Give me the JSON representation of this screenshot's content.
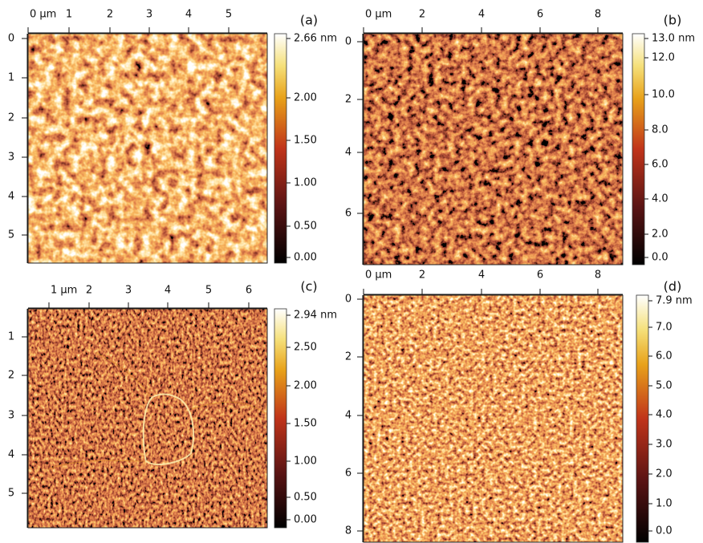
{
  "panels": [
    {
      "label": "(a)",
      "x_ticks": [
        "0 µm",
        "1",
        "2",
        "3",
        "4",
        "5"
      ],
      "y_ticks": [
        "0",
        "1",
        "2",
        "3",
        "4",
        "5"
      ],
      "scale_ticks": [
        "2.66 nm",
        "2.00",
        "1.50",
        "1.00",
        "0.50",
        "0.00"
      ]
    },
    {
      "label": "(b)",
      "x_ticks": [
        "0 µm",
        "2",
        "4",
        "6",
        "8"
      ],
      "y_ticks": [
        "0",
        "2",
        "4",
        "6"
      ],
      "scale_ticks": [
        "13.0 nm",
        "12.0",
        "10.0",
        "8.0",
        "6.0",
        "4.0",
        "2.0",
        "0.0"
      ]
    },
    {
      "label": "(c)",
      "x_ticks": [
        "1 µm",
        "2",
        "3",
        "4",
        "5",
        "6"
      ],
      "y_ticks": [
        "1",
        "2",
        "3",
        "4",
        "5"
      ],
      "scale_ticks": [
        "2.94 nm",
        "2.50",
        "2.00",
        "1.50",
        "1.00",
        "0.50",
        "0.00"
      ]
    },
    {
      "label": "(d)",
      "x_ticks": [
        "0 µm",
        "2",
        "4",
        "6",
        "8"
      ],
      "y_ticks": [
        "0",
        "2",
        "4",
        "6",
        "8"
      ],
      "scale_ticks": [
        "7.9 nm",
        "7.0",
        "6.0",
        "5.0",
        "4.0",
        "3.0",
        "2.0",
        "1.0",
        "0.0"
      ]
    }
  ]
}
